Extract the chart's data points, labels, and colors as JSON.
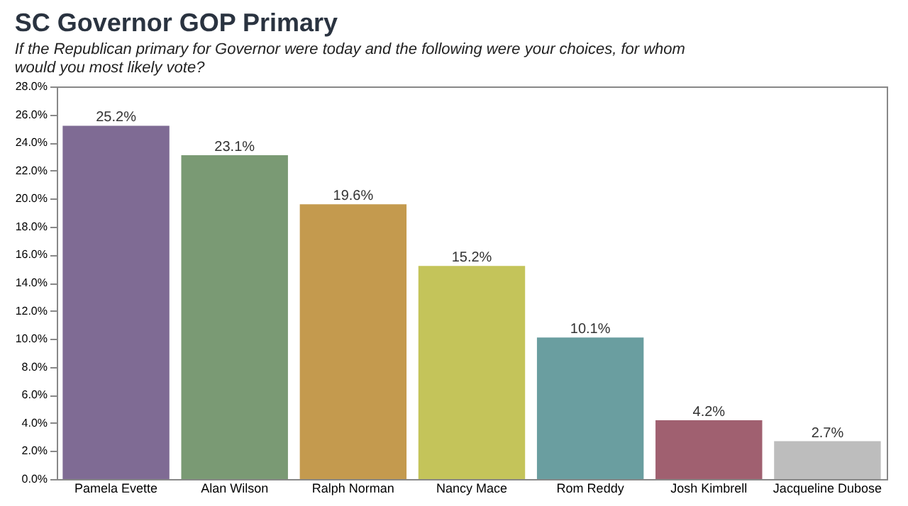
{
  "chart_data": {
    "type": "bar",
    "title": "SC Governor GOP Primary",
    "subtitle": "If the Republican primary for Governor were today and the following were your choices, for whom would you most likely vote?",
    "categories": [
      "Pamela Evette",
      "Alan Wilson",
      "Ralph Norman",
      "Nancy Mace",
      "Rom Reddy",
      "Josh Kimbrell",
      "Jacqueline Dubose"
    ],
    "values": [
      25.2,
      23.1,
      19.6,
      15.2,
      10.1,
      4.2,
      2.7
    ],
    "value_labels": [
      "25.2%",
      "23.1%",
      "19.6%",
      "15.2%",
      "10.1%",
      "4.2%",
      "2.7%"
    ],
    "colors": [
      "#7f6b94",
      "#7a9a74",
      "#c49a4e",
      "#c4c45a",
      "#6a9ea0",
      "#a06070",
      "#bdbdbd"
    ],
    "ylim": [
      0,
      28
    ],
    "yticks": [
      {
        "value": 0,
        "label": "0.0%"
      },
      {
        "value": 2,
        "label": "2.0%"
      },
      {
        "value": 4,
        "label": "4.0%"
      },
      {
        "value": 6,
        "label": "6.0%"
      },
      {
        "value": 8,
        "label": "8.0%"
      },
      {
        "value": 10,
        "label": "10.0%"
      },
      {
        "value": 12,
        "label": "12.0%"
      },
      {
        "value": 14,
        "label": "14.0%"
      },
      {
        "value": 16,
        "label": "16.0%"
      },
      {
        "value": 18,
        "label": "18.0%"
      },
      {
        "value": 20,
        "label": "20.0%"
      },
      {
        "value": 22,
        "label": "22.0%"
      },
      {
        "value": 24,
        "label": "24.0%"
      },
      {
        "value": 26,
        "label": "26.0%"
      },
      {
        "value": 28,
        "label": "28.0%"
      }
    ],
    "grid": false,
    "legend": false
  }
}
